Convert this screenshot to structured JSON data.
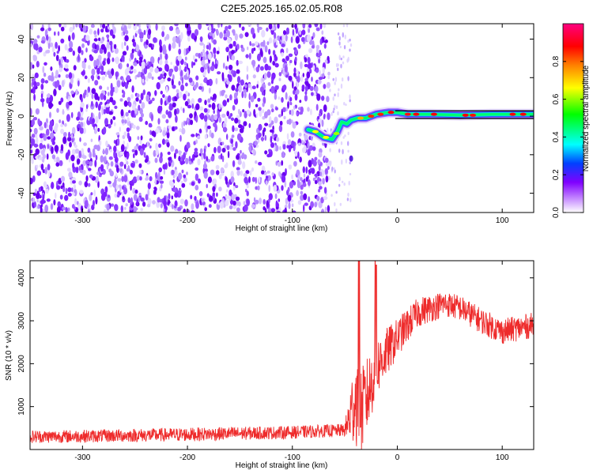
{
  "title": "C2E5.2025.165.02.05.R08",
  "colors": {
    "axis": "#000000",
    "snr_line": "#ee2b2b",
    "spectro_noise": "#6a00f0",
    "spectro_noise_light": "#c8b0ff",
    "spectro_line_peak": "#ff0000",
    "spectro_line_mid": "#00ff80",
    "spectro_line_low": "#3040ff"
  },
  "chart_data": [
    {
      "type": "heatmap",
      "xlabel": "Height of straight line (km)",
      "ylabel": "Frequency (Hz)",
      "xlim": [
        -350,
        130
      ],
      "ylim": [
        -50,
        48
      ],
      "xticks": [
        -300,
        -200,
        -100,
        0,
        100
      ],
      "yticks": [
        -40,
        -20,
        0,
        20,
        40
      ],
      "noise_region_x": [
        -350,
        -65
      ],
      "sparse_noise_x": [
        -65,
        -44
      ],
      "stray_spot": {
        "x": -44,
        "y": -22
      },
      "carrier_track": [
        {
          "x": -85,
          "y": -7
        },
        {
          "x": -78,
          "y": -8
        },
        {
          "x": -70,
          "y": -11
        },
        {
          "x": -62,
          "y": -12
        },
        {
          "x": -57,
          "y": -8
        },
        {
          "x": -53,
          "y": -3
        },
        {
          "x": -48,
          "y": -4
        },
        {
          "x": -44,
          "y": -2
        },
        {
          "x": -38,
          "y": -1
        },
        {
          "x": -30,
          "y": -1
        },
        {
          "x": -20,
          "y": 1
        },
        {
          "x": -8,
          "y": 2
        },
        {
          "x": 0,
          "y": 2
        },
        {
          "x": 10,
          "y": 1
        },
        {
          "x": 30,
          "y": 1
        },
        {
          "x": 60,
          "y": 0.5
        },
        {
          "x": 90,
          "y": 1
        },
        {
          "x": 130,
          "y": 1
        }
      ],
      "colorbar": {
        "label": "Normalized spectral amplitude",
        "range": [
          0,
          1
        ],
        "ticks": [
          "0.0",
          "0.2",
          "0.4",
          "0.6",
          "0.8"
        ],
        "colormap": [
          "#ffffff",
          "#8000ff",
          "#0040ff",
          "#00ffff",
          "#00ff00",
          "#ffff00",
          "#ff8000",
          "#ff0000",
          "#ff0080"
        ]
      }
    },
    {
      "type": "line",
      "xlabel": "Height of straight line (km)",
      "ylabel": "SNR (10 * v/v)",
      "xlim": [
        -350,
        130
      ],
      "ylim": [
        0,
        4400
      ],
      "xticks": [
        -300,
        -200,
        -100,
        0,
        100
      ],
      "yticks": [
        1000,
        2000,
        3000,
        4000
      ],
      "envelope": [
        {
          "x": -350,
          "mean": 300,
          "amp": 150
        },
        {
          "x": -300,
          "mean": 310,
          "amp": 150
        },
        {
          "x": -200,
          "mean": 350,
          "amp": 160
        },
        {
          "x": -100,
          "mean": 400,
          "amp": 150
        },
        {
          "x": -50,
          "mean": 450,
          "amp": 150
        },
        {
          "x": -46,
          "mean": 700,
          "amp": 600
        },
        {
          "x": -40,
          "mean": 1200,
          "amp": 1100
        },
        {
          "x": -34,
          "mean": 900,
          "amp": 1000
        },
        {
          "x": -28,
          "mean": 1300,
          "amp": 900
        },
        {
          "x": -20,
          "mean": 1900,
          "amp": 700
        },
        {
          "x": -12,
          "mean": 2200,
          "amp": 600
        },
        {
          "x": 0,
          "mean": 2600,
          "amp": 450
        },
        {
          "x": 20,
          "mean": 3200,
          "amp": 350
        },
        {
          "x": 45,
          "mean": 3400,
          "amp": 300
        },
        {
          "x": 60,
          "mean": 3300,
          "amp": 300
        },
        {
          "x": 80,
          "mean": 3000,
          "amp": 300
        },
        {
          "x": 100,
          "mean": 2750,
          "amp": 300
        },
        {
          "x": 130,
          "mean": 2900,
          "amp": 300
        }
      ],
      "spikes": [
        {
          "x": -37,
          "y": 4400
        },
        {
          "x": -36,
          "y": 4400
        },
        {
          "x": -21,
          "y": 4400
        },
        {
          "x": -20,
          "y": 4300
        }
      ]
    }
  ]
}
